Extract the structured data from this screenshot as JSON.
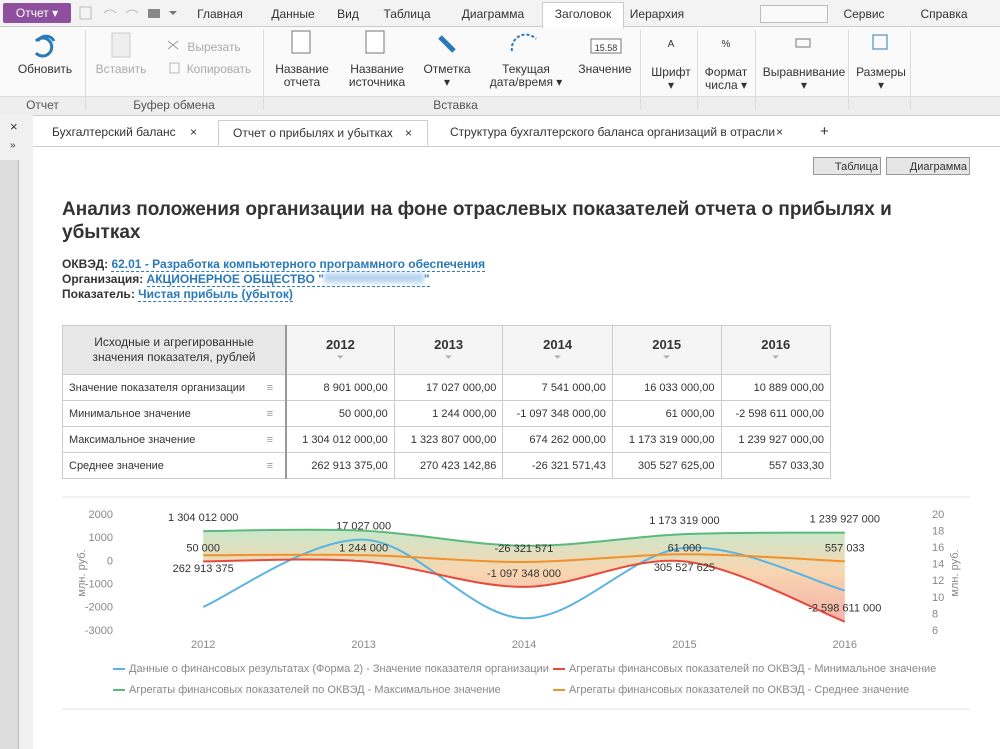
{
  "menu": {
    "report_button": "Отчет",
    "tabs": [
      "Главная",
      "Данные",
      "Вид",
      "Таблица",
      "Диаграмма",
      "Заголовок",
      "Иерархия"
    ],
    "right": [
      "Сервис",
      "Справка"
    ]
  },
  "ribbon": {
    "buttons": {
      "refresh": "Обновить",
      "paste": "Вставить",
      "cut": "Вырезать",
      "copy": "Копировать",
      "report_name": "Название отчета",
      "source_name": "Название источника",
      "mark": "Отметка",
      "datetime": "Текущая дата/время",
      "value": "Значение",
      "value_icon": "15.58",
      "font": "Шрифт",
      "font_icon": "A",
      "number_format": "Формат числа",
      "number_icon": "%",
      "align": "Выравнивание",
      "sizes": "Размеры"
    },
    "groups": [
      "Отчет",
      "Буфер обмена",
      "Вставка"
    ]
  },
  "doc_tabs": [
    "Бухгалтерский баланс",
    "Отчет о прибылях и убытках",
    "Структура бухгалтерского баланса организаций в отрасли"
  ],
  "view_buttons": [
    "Таблица",
    "Диаграмма"
  ],
  "report": {
    "title": "Анализ положения организации на фоне отраслевых показателей отчета о прибылях и убытках",
    "okved_label": "ОКВЭД:",
    "okved": "62.01 - Разработка компьютерного программного обеспечения",
    "org_label": "Организация:",
    "org_prefix": "АКЦИОНЕРНОЕ ОБЩЕСТВО \"",
    "org_suffix": "\"",
    "indicator_label": "Показатель:",
    "indicator": "Чистая прибыль (убыток)"
  },
  "table": {
    "header": [
      "Исходные и агрегированные значения показателя, рублей",
      "2012",
      "2013",
      "2014",
      "2015",
      "2016"
    ],
    "rows": [
      [
        "Значение показателя организации",
        "8 901 000,00",
        "17 027 000,00",
        "7 541 000,00",
        "16 033 000,00",
        "10 889 000,00"
      ],
      [
        "Минимальное значение",
        "50 000,00",
        "1 244 000,00",
        "-1 097 348 000,00",
        "61 000,00",
        "-2 598 611 000,00"
      ],
      [
        "Максимальное значение",
        "1 304 012 000,00",
        "1 323 807 000,00",
        "674 262 000,00",
        "1 173 319 000,00",
        "1 239 927 000,00"
      ],
      [
        "Среднее значение",
        "262 913 375,00",
        "270 423 142,86",
        "-26 321 571,43",
        "305 527 625,00",
        "557 033,30"
      ]
    ]
  },
  "chart": {
    "type": "line",
    "categories": [
      "2012",
      "2013",
      "2014",
      "2015",
      "2016"
    ],
    "ylabel": "млн. руб.",
    "y2label": "млн. руб.",
    "ylim": [
      -3000,
      2000
    ],
    "yticks": [
      2000,
      1000,
      0,
      -1000,
      -2000,
      -3000
    ],
    "y2lim": [
      6,
      20
    ],
    "y2ticks": [
      20,
      18,
      16,
      14,
      12,
      10,
      8,
      6
    ],
    "series": [
      {
        "name": "Данные о финансовых результатах (Форма 2) - Значение показателя организации",
        "color": "#5ab4e0",
        "axis": "y2",
        "values": [
          8.901,
          17.027,
          7.541,
          16.033,
          10.889
        ],
        "value_labels": [
          null,
          "17 027 000",
          null,
          null,
          null
        ]
      },
      {
        "name": "Агрегаты финансовых показателей по ОКВЭД - Минимальное значение",
        "color": "#e64a3b",
        "values": [
          0.05,
          1.244,
          -1097.348,
          0.061,
          -2598.611
        ],
        "value_labels": [
          "50 000",
          "1 244 000",
          "-1 097 348 000",
          "61 000",
          "-2 598 611 000"
        ]
      },
      {
        "name": "Агрегаты финансовых показателей по ОКВЭД - Максимальное значение",
        "color": "#5cb97a",
        "values": [
          1304.012,
          1323.807,
          674.262,
          1173.319,
          1239.927
        ],
        "value_labels": [
          "1 304 012 000",
          null,
          null,
          "1 173 319 000",
          "1 239 927 000"
        ]
      },
      {
        "name": "Агрегаты финансовых показателей по ОКВЭД - Среднее значение",
        "color": "#f0912e",
        "values": [
          262.913375,
          270.42314286,
          -26.321571,
          305.527625,
          0.557033
        ],
        "value_labels": [
          "262 913 375",
          null,
          "-26 321 571",
          "305 527 625",
          "557 033"
        ]
      }
    ]
  }
}
